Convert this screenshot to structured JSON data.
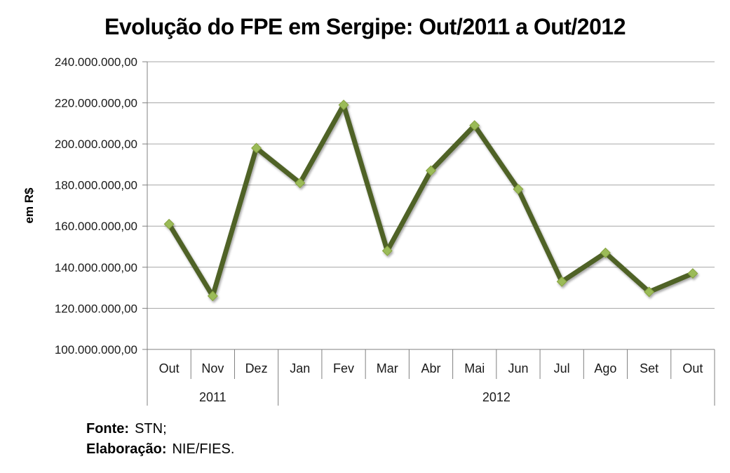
{
  "title": "Evolução do FPE em Sergipe: Out/2011 a Out/2012",
  "y_axis": {
    "title": "em R$"
  },
  "footer": {
    "source_label": "Fonte:",
    "source_value": "STN;",
    "elaboration_label": "Elaboração:",
    "elaboration_value": "NIE/FIES."
  },
  "chart_data": {
    "type": "line",
    "title": "Evolução do FPE em Sergipe: Out/2011 a Out/2012",
    "xlabel": "",
    "ylabel": "em R$",
    "categories": [
      "Out",
      "Nov",
      "Dez",
      "Jan",
      "Fev",
      "Mar",
      "Abr",
      "Mai",
      "Jun",
      "Jul",
      "Ago",
      "Set",
      "Out"
    ],
    "year_groups": [
      {
        "label": "2011",
        "span": 3
      },
      {
        "label": "2012",
        "span": 10
      }
    ],
    "values": [
      161000000,
      126000000,
      198000000,
      181000000,
      219000000,
      148000000,
      187000000,
      209000000,
      178000000,
      133000000,
      147000000,
      128000000,
      137000000
    ],
    "ylim": [
      100000000,
      240000000
    ],
    "ytick_step": 20000000,
    "ytick_labels": [
      "240.000.000,00",
      "220.000.000,00",
      "200.000.000,00",
      "180.000.000,00",
      "160.000.000,00",
      "140.000.000,00",
      "120.000.000,00",
      "100.000.000,00"
    ],
    "grid": true,
    "legend": "none",
    "marker_shape": "diamond",
    "line_color": "#4F6228",
    "marker_color": "#9BBB59",
    "marker_edge_color": "#86A23F",
    "gridline_color": "#A6A6A6",
    "axis_color": "#808080"
  }
}
